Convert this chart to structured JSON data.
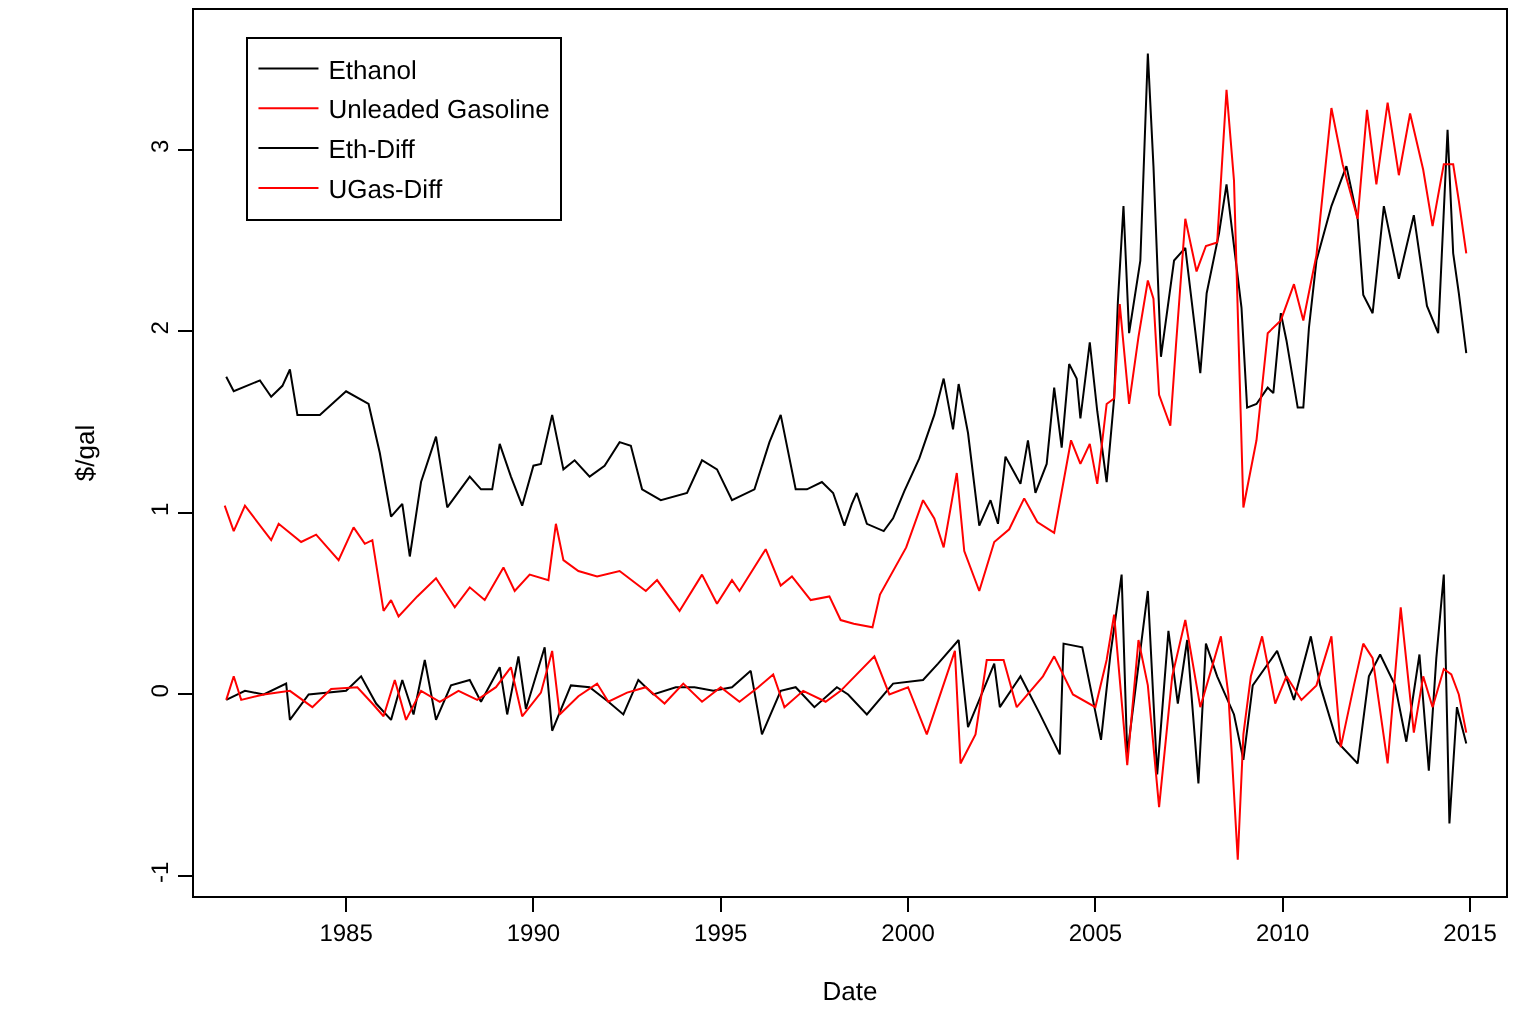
{
  "chart_data": {
    "type": "line",
    "xlabel": "Date",
    "ylabel": "$/gal",
    "xlim": [
      1980.94,
      2015.96
    ],
    "xticks": [
      1985,
      1990,
      1995,
      2000,
      2005,
      2010,
      2015
    ],
    "ylim": [
      -1.11,
      3.77
    ],
    "yticks": [
      -1,
      0,
      1,
      2,
      3
    ],
    "grid": false,
    "legend": "top left",
    "line_style": "solid",
    "marker": "none",
    "series": [
      {
        "name": "Ethanol",
        "color": "#000000",
        "x": [
          1981.8,
          1982.0,
          1982.7,
          1983.0,
          1983.3,
          1983.5,
          1983.7,
          1984.3,
          1985.0,
          1985.6,
          1985.9,
          1986.2,
          1986.5,
          1986.7,
          1987.0,
          1987.4,
          1987.7,
          1988.3,
          1988.6,
          1988.9,
          1989.1,
          1989.4,
          1989.7,
          1990.0,
          1990.2,
          1990.5,
          1990.8,
          1991.1,
          1991.5,
          1991.9,
          1992.3,
          1992.6,
          1992.9,
          1993.4,
          1994.1,
          1994.5,
          1994.9,
          1995.3,
          1995.9,
          1996.3,
          1996.6,
          1997.0,
          1997.3,
          1997.7,
          1998.0,
          1998.3,
          1998.5,
          1998.63,
          1998.9,
          1999.35,
          1999.6,
          1999.9,
          2000.3,
          2000.7,
          2000.95,
          2001.2,
          2001.35,
          2001.6,
          2001.9,
          2002.2,
          2002.4,
          2002.6,
          2003.0,
          2003.2,
          2003.4,
          2003.7,
          2003.9,
          2004.1,
          2004.3,
          2004.5,
          2004.6,
          2004.85,
          2005.05,
          2005.3,
          2005.5,
          2005.6,
          2005.75,
          2005.9,
          2006.2,
          2006.4,
          2006.55,
          2006.75,
          2007.1,
          2007.4,
          2007.8,
          2007.97,
          2008.3,
          2008.5,
          2008.9,
          2009.05,
          2009.3,
          2009.6,
          2009.75,
          2009.95,
          2010.1,
          2010.4,
          2010.55,
          2010.7,
          2010.9,
          2011.3,
          2011.7,
          2012.0,
          2012.15,
          2012.4,
          2012.7,
          2013.1,
          2013.5,
          2013.85,
          2014.15,
          2014.4,
          2014.55,
          2014.7,
          2014.9
        ],
        "values": [
          1.75,
          1.67,
          1.73,
          1.64,
          1.7,
          1.79,
          1.54,
          1.54,
          1.67,
          1.6,
          1.33,
          0.98,
          1.05,
          0.76,
          1.17,
          1.42,
          1.03,
          1.2,
          1.13,
          1.13,
          1.38,
          1.2,
          1.04,
          1.26,
          1.27,
          1.54,
          1.24,
          1.29,
          1.2,
          1.26,
          1.39,
          1.37,
          1.13,
          1.07,
          1.11,
          1.29,
          1.24,
          1.07,
          1.13,
          1.39,
          1.54,
          1.13,
          1.13,
          1.17,
          1.11,
          0.93,
          1.05,
          1.11,
          0.94,
          0.9,
          0.97,
          1.12,
          1.3,
          1.54,
          1.74,
          1.46,
          1.71,
          1.44,
          0.93,
          1.07,
          0.94,
          1.31,
          1.16,
          1.4,
          1.11,
          1.27,
          1.69,
          1.36,
          1.82,
          1.74,
          1.52,
          1.94,
          1.56,
          1.17,
          1.63,
          2.16,
          2.69,
          1.99,
          2.39,
          3.53,
          2.91,
          1.86,
          2.39,
          2.46,
          1.77,
          2.21,
          2.54,
          2.81,
          2.13,
          1.58,
          1.6,
          1.69,
          1.66,
          2.1,
          1.95,
          1.58,
          1.58,
          2.02,
          2.39,
          2.69,
          2.91,
          2.62,
          2.2,
          2.1,
          2.69,
          2.29,
          2.64,
          2.14,
          1.99,
          3.11,
          2.43,
          2.21,
          1.88
        ]
      },
      {
        "name": "Unleaded Gasoline",
        "color": "#ff0000",
        "x": [
          1981.76,
          1982.0,
          1982.3,
          1983.0,
          1983.2,
          1983.8,
          1984.2,
          1984.8,
          1985.2,
          1985.5,
          1985.7,
          1986.0,
          1986.2,
          1986.4,
          1986.9,
          1987.4,
          1987.9,
          1988.3,
          1988.7,
          1989.2,
          1989.5,
          1989.9,
          1990.4,
          1990.6,
          1990.8,
          1991.2,
          1991.7,
          1992.3,
          1993.0,
          1993.3,
          1993.9,
          1994.5,
          1994.9,
          1995.3,
          1995.5,
          1996.2,
          1996.6,
          1996.9,
          1997.4,
          1997.9,
          1998.2,
          1998.55,
          1999.05,
          1999.25,
          1999.95,
          2000.4,
          2000.7,
          2000.95,
          2001.3,
          2001.5,
          2001.9,
          2002.3,
          2002.7,
          2003.1,
          2003.45,
          2003.9,
          2004.35,
          2004.6,
          2004.85,
          2005.05,
          2005.3,
          2005.5,
          2005.65,
          2005.9,
          2006.15,
          2006.4,
          2006.55,
          2006.7,
          2007.0,
          2007.15,
          2007.4,
          2007.7,
          2007.95,
          2008.25,
          2008.5,
          2008.7,
          2008.95,
          2009.3,
          2009.6,
          2009.95,
          2010.3,
          2010.55,
          2010.9,
          2011.3,
          2011.6,
          2012.0,
          2012.25,
          2012.5,
          2012.8,
          2013.1,
          2013.4,
          2013.75,
          2014.0,
          2014.3,
          2014.55,
          2014.7,
          2014.9
        ],
        "values": [
          1.04,
          0.9,
          1.04,
          0.85,
          0.94,
          0.84,
          0.88,
          0.74,
          0.92,
          0.83,
          0.85,
          0.46,
          0.52,
          0.43,
          0.54,
          0.64,
          0.48,
          0.59,
          0.52,
          0.7,
          0.57,
          0.66,
          0.63,
          0.94,
          0.74,
          0.68,
          0.65,
          0.68,
          0.57,
          0.63,
          0.46,
          0.66,
          0.5,
          0.63,
          0.57,
          0.8,
          0.6,
          0.65,
          0.52,
          0.54,
          0.41,
          0.39,
          0.37,
          0.55,
          0.81,
          1.07,
          0.97,
          0.81,
          1.22,
          0.79,
          0.57,
          0.84,
          0.91,
          1.08,
          0.95,
          0.89,
          1.4,
          1.27,
          1.38,
          1.16,
          1.6,
          1.63,
          2.15,
          1.6,
          1.97,
          2.28,
          2.18,
          1.65,
          1.48,
          1.92,
          2.62,
          2.33,
          2.47,
          2.49,
          3.33,
          2.83,
          1.03,
          1.4,
          1.99,
          2.06,
          2.26,
          2.06,
          2.42,
          3.23,
          2.92,
          2.62,
          3.22,
          2.81,
          3.26,
          2.86,
          3.2,
          2.89,
          2.58,
          2.92,
          2.92,
          2.72,
          2.43
        ]
      },
      {
        "name": "Eth-Diff",
        "color": "#000000",
        "x": [
          1981.8,
          1982.3,
          1982.8,
          1983.4,
          1983.5,
          1984.0,
          1985.0,
          1985.4,
          1985.8,
          1986.2,
          1986.5,
          1986.8,
          1987.1,
          1987.4,
          1987.8,
          1988.3,
          1988.6,
          1989.1,
          1989.3,
          1989.6,
          1989.8,
          1990.3,
          1990.5,
          1991.0,
          1991.5,
          1992.0,
          1992.4,
          1992.8,
          1993.2,
          1993.8,
          1994.3,
          1994.8,
          1995.3,
          1995.8,
          1996.1,
          1996.6,
          1997.0,
          1997.5,
          1998.1,
          1998.4,
          1998.9,
          1999.6,
          2000.4,
          2000.8,
          2001.35,
          2001.6,
          2002.3,
          2002.45,
          2003.0,
          2003.5,
          2004.05,
          2004.15,
          2004.65,
          2005.15,
          2005.4,
          2005.7,
          2005.85,
          2006.4,
          2006.65,
          2006.95,
          2007.2,
          2007.45,
          2007.75,
          2007.95,
          2008.25,
          2008.7,
          2008.95,
          2009.2,
          2009.85,
          2010.3,
          2010.75,
          2011.0,
          2011.45,
          2012.0,
          2012.3,
          2012.6,
          2013.0,
          2013.3,
          2013.65,
          2013.9,
          2014.1,
          2014.3,
          2014.45,
          2014.65,
          2014.9
        ],
        "values": [
          -0.03,
          0.02,
          0.0,
          0.06,
          -0.14,
          0.0,
          0.02,
          0.1,
          -0.05,
          -0.14,
          0.08,
          -0.11,
          0.19,
          -0.14,
          0.05,
          0.08,
          -0.04,
          0.15,
          -0.11,
          0.21,
          -0.08,
          0.26,
          -0.2,
          0.05,
          0.04,
          -0.04,
          -0.11,
          0.08,
          0.0,
          0.04,
          0.04,
          0.02,
          0.04,
          0.13,
          -0.22,
          0.02,
          0.04,
          -0.07,
          0.04,
          0.0,
          -0.11,
          0.06,
          0.08,
          0.17,
          0.3,
          -0.18,
          0.17,
          -0.07,
          0.1,
          -0.1,
          -0.33,
          0.28,
          0.26,
          -0.25,
          0.22,
          0.66,
          -0.33,
          0.57,
          -0.44,
          0.35,
          -0.05,
          0.3,
          -0.49,
          0.28,
          0.1,
          -0.11,
          -0.36,
          0.05,
          0.24,
          -0.03,
          0.32,
          0.05,
          -0.26,
          -0.38,
          0.1,
          0.22,
          0.05,
          -0.26,
          0.22,
          -0.42,
          0.2,
          0.66,
          -0.71,
          -0.07,
          -0.27
        ]
      },
      {
        "name": "UGas-Diff",
        "color": "#ff0000",
        "x": [
          1981.8,
          1982.0,
          1982.2,
          1982.8,
          1983.5,
          1984.1,
          1984.6,
          1985.3,
          1985.7,
          1986.0,
          1986.3,
          1986.6,
          1987.0,
          1987.5,
          1988.0,
          1988.5,
          1989.0,
          1989.4,
          1989.7,
          1990.2,
          1990.5,
          1990.7,
          1991.2,
          1991.7,
          1992.0,
          1992.5,
          1993.0,
          1993.5,
          1994.0,
          1994.5,
          1995.0,
          1995.5,
          1996.0,
          1996.4,
          1996.7,
          1997.2,
          1997.8,
          1998.2,
          1999.1,
          1999.5,
          2000.0,
          2000.5,
          2001.25,
          2001.4,
          2001.8,
          2002.1,
          2002.55,
          2002.9,
          2003.6,
          2003.9,
          2004.4,
          2005.0,
          2005.3,
          2005.5,
          2005.85,
          2006.15,
          2006.4,
          2006.7,
          2007.05,
          2007.4,
          2007.8,
          2008.35,
          2008.55,
          2008.8,
          2008.95,
          2009.15,
          2009.45,
          2009.8,
          2010.1,
          2010.5,
          2010.9,
          2011.3,
          2011.55,
          2011.9,
          2012.15,
          2012.4,
          2012.8,
          2013.15,
          2013.5,
          2013.75,
          2014.0,
          2014.3,
          2014.5,
          2014.7,
          2014.9
        ],
        "values": [
          -0.03,
          0.1,
          -0.03,
          0.0,
          0.02,
          -0.07,
          0.03,
          0.04,
          -0.05,
          -0.12,
          0.08,
          -0.14,
          0.02,
          -0.04,
          0.02,
          -0.03,
          0.04,
          0.15,
          -0.12,
          0.01,
          0.24,
          -0.11,
          -0.01,
          0.06,
          -0.04,
          0.01,
          0.04,
          -0.05,
          0.06,
          -0.04,
          0.04,
          -0.04,
          0.04,
          0.11,
          -0.07,
          0.02,
          -0.04,
          0.02,
          0.21,
          0.0,
          0.04,
          -0.22,
          0.24,
          -0.38,
          -0.22,
          0.19,
          0.19,
          -0.07,
          0.1,
          0.21,
          0.0,
          -0.07,
          0.19,
          0.44,
          -0.39,
          0.3,
          0.05,
          -0.62,
          0.1,
          0.41,
          -0.07,
          0.32,
          0.0,
          -0.91,
          -0.22,
          0.1,
          0.32,
          -0.05,
          0.1,
          -0.03,
          0.05,
          0.32,
          -0.29,
          0.05,
          0.28,
          0.2,
          -0.38,
          0.48,
          -0.21,
          0.1,
          -0.07,
          0.14,
          0.11,
          0.0,
          -0.21
        ]
      }
    ]
  }
}
